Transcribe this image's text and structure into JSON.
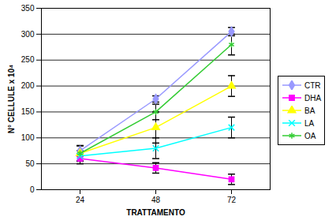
{
  "chart_data": {
    "type": "line",
    "x_label": "TRATTAMENTO",
    "y_label": "N° CELLULE x 10⁴",
    "categories": [
      "24",
      "48",
      "72"
    ],
    "ylim": [
      0,
      350
    ],
    "yticks": [
      0,
      50,
      100,
      150,
      200,
      250,
      300,
      350
    ],
    "grid": true,
    "legend": "right",
    "series": [
      {
        "name": "CTR",
        "color": "#9999ff",
        "marker": "diamond",
        "values": [
          75,
          175,
          305
        ],
        "errors": [
          10,
          6,
          8
        ]
      },
      {
        "name": "DHA",
        "color": "#ff00ff",
        "marker": "square",
        "values": [
          60,
          42,
          20
        ],
        "errors": [
          10,
          10,
          10
        ]
      },
      {
        "name": "BA",
        "color": "#ffff00",
        "marker": "triangle",
        "values": [
          70,
          120,
          200
        ],
        "errors": [
          15,
          30,
          20
        ]
      },
      {
        "name": "LA",
        "color": "#00ffff",
        "marker": "x",
        "values": [
          65,
          80,
          120
        ],
        "errors": [
          10,
          20,
          20
        ]
      },
      {
        "name": "OA",
        "color": "#33cc33",
        "marker": "asterisk",
        "values": [
          70,
          150,
          280
        ],
        "errors": [
          15,
          15,
          20
        ]
      }
    ]
  }
}
